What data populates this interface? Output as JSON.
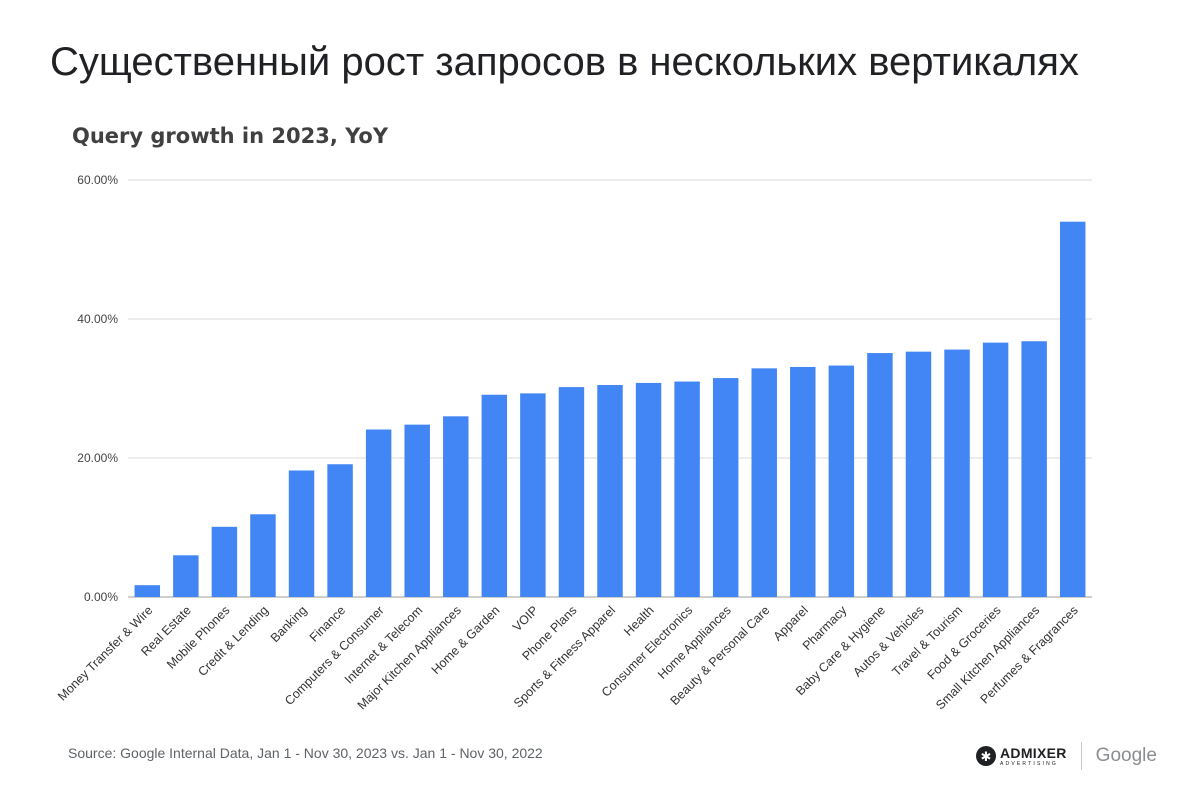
{
  "slide": {
    "title": "Существенный рост запросов в нескольких вертикалях",
    "source": "Source: Google Internal Data, Jan 1 - Nov 30, 2023 vs. Jan 1 - Nov 30, 2022"
  },
  "logos": {
    "admixer_name": "ADMIXER",
    "admixer_sub": "ADVERTISING",
    "google": "Google"
  },
  "chart_data": {
    "type": "bar",
    "title": "Query growth in 2023, YoY",
    "xlabel": "",
    "ylabel": "",
    "ylim": [
      0,
      60
    ],
    "yticks": [
      0,
      20,
      40,
      60
    ],
    "ytick_labels": [
      "0.00%",
      "20.00%",
      "40.00%",
      "60.00%"
    ],
    "grid": true,
    "legend": "none",
    "bar_color": "#4285f4",
    "categories": [
      "Money Transfer & Wire",
      "Real Estate",
      "Mobile Phones",
      "Credit & Lending",
      "Banking",
      "Finance",
      "Computers & Consumer",
      "Internet & Telecom",
      "Major Kitchen Appliances",
      "Home & Garden",
      "VOIP",
      "Phone Plans",
      "Sports & Fitness Apparel",
      "Health",
      "Consumer Electronics",
      "Home Appliances",
      "Beauty & Personal Care",
      "Apparel",
      "Pharmacy",
      "Baby Care & Hygiene",
      "Autos & Vehicles",
      "Travel & Tourism",
      "Food & Groceries",
      "Small Kitchen Appliances",
      "Perfumes & Fragrances"
    ],
    "values": [
      1.7,
      6.0,
      10.1,
      11.9,
      18.2,
      19.1,
      24.1,
      24.8,
      26.0,
      29.1,
      29.3,
      30.2,
      30.5,
      30.8,
      31.0,
      31.5,
      32.9,
      33.1,
      33.3,
      35.1,
      35.3,
      35.6,
      36.6,
      36.8,
      54.0
    ]
  }
}
